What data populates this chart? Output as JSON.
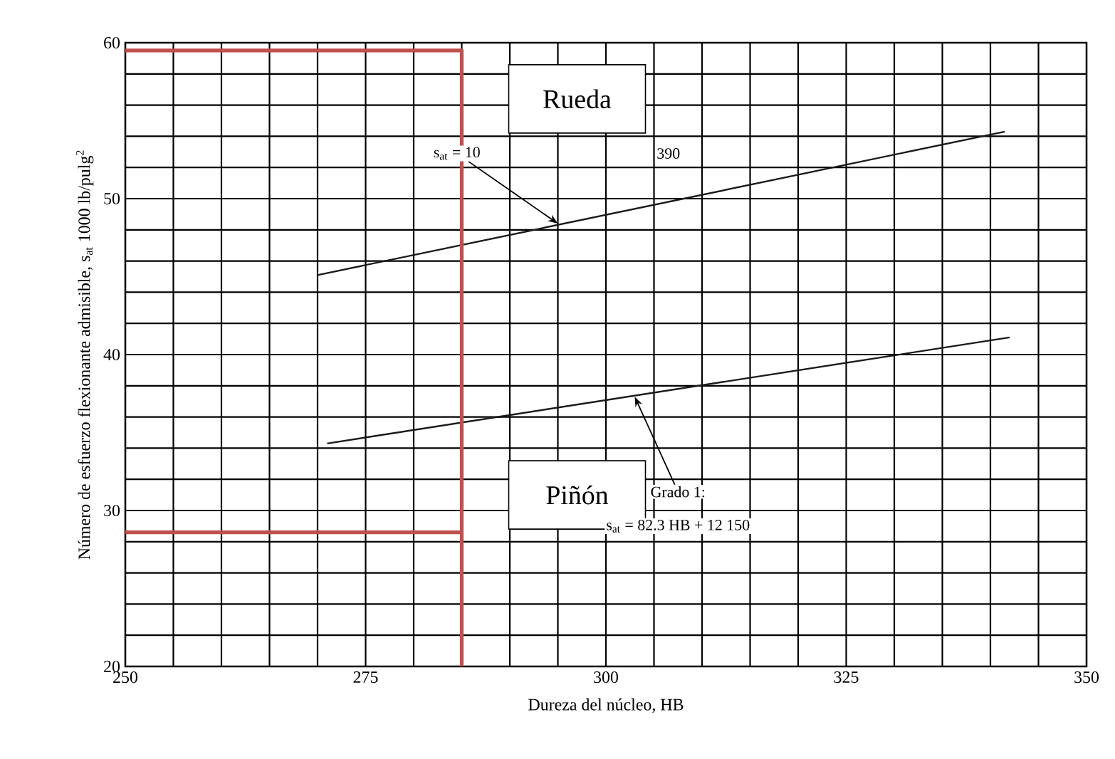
{
  "chart_data": {
    "type": "line",
    "xlabel": "Dureza del núcleo, HB",
    "ylabel": "Número de esfuerzo flexionante admisible, s$_{at}$ 1000 lb/pulg$^{2}$",
    "xlim": [
      250,
      350
    ],
    "ylim": [
      20,
      60
    ],
    "xticks": [
      250,
      {
        "value": 255,
        "label": null
      },
      {
        "value": 260,
        "label": null
      },
      {
        "value": 265,
        "label": null
      },
      {
        "value": 270,
        "label": null
      },
      275,
      {
        "value": 280,
        "label": null
      },
      {
        "value": 285,
        "label": null
      },
      {
        "value": 290,
        "label": null
      },
      {
        "value": 295,
        "label": null
      },
      300,
      {
        "value": 305,
        "label": null
      },
      {
        "value": 310,
        "label": null
      },
      {
        "value": 315,
        "label": null
      },
      {
        "value": 320,
        "label": null
      },
      325,
      {
        "value": 330,
        "label": null
      },
      {
        "value": 335,
        "label": null
      },
      {
        "value": 340,
        "label": null
      },
      {
        "value": 345,
        "label": null
      },
      350
    ],
    "yticks": [
      20,
      {
        "value": 22,
        "label": null
      },
      {
        "value": 24,
        "label": null
      },
      {
        "value": 26,
        "label": null
      },
      {
        "value": 28,
        "label": null
      },
      30,
      {
        "value": 32,
        "label": null
      },
      {
        "value": 34,
        "label": null
      },
      {
        "value": 36,
        "label": null
      },
      {
        "value": 38,
        "label": null
      },
      40,
      {
        "value": 42,
        "label": null
      },
      {
        "value": 44,
        "label": null
      },
      {
        "value": 46,
        "label": null
      },
      {
        "value": 48,
        "label": null
      },
      50,
      {
        "value": 52,
        "label": null
      },
      {
        "value": 54,
        "label": null
      },
      {
        "value": 56,
        "label": null
      },
      {
        "value": 58,
        "label": null
      },
      60
    ],
    "grid": true,
    "series": [
      {
        "color": "#1a1a1a",
        "x": [
          270,
          341.5
        ],
        "values": [
          45.1,
          54.3
        ]
      },
      {
        "color": "#1a1a1a",
        "x": [
          271,
          342
        ],
        "values": [
          34.3,
          41.1
        ]
      },
      {
        "color": "#c0504d",
        "x": [
          250,
          285,
          285
        ],
        "values": [
          59.5,
          59.5,
          20
        ]
      },
      {
        "color": "#c0504d",
        "x": [
          250,
          285
        ],
        "values": [
          28.6,
          28.6
        ]
      }
    ],
    "annotations": [
      "Rueda",
      "Piñón",
      {
        "text": "s$_{at}$ = 10",
        "x": 295,
        "y": 48.4
      },
      "390",
      {
        "text": "Grado 1:",
        "x": 303,
        "y": 37.3
      },
      "s$_{at}$ = 82.3 HB + 12 150"
    ]
  }
}
